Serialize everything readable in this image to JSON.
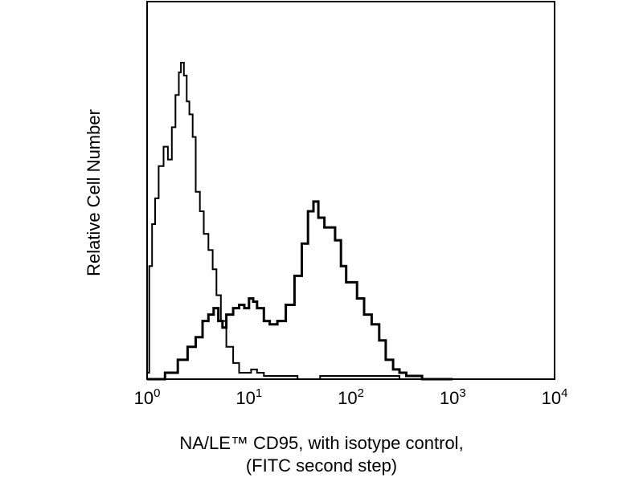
{
  "chart_data": {
    "type": "line",
    "title": "",
    "xlabel_line1": "NA/LE™ CD95, with isotype control,",
    "xlabel_line2": "(FITC second step)",
    "ylabel": "Relative Cell Number",
    "x_scale": "log",
    "xlim": [
      1,
      10000
    ],
    "ylim": [
      0,
      100
    ],
    "x_ticks": [
      {
        "base": "10",
        "exp": "0",
        "value": 1
      },
      {
        "base": "10",
        "exp": "1",
        "value": 10
      },
      {
        "base": "10",
        "exp": "2",
        "value": 100
      },
      {
        "base": "10",
        "exp": "3",
        "value": 1000
      },
      {
        "base": "10",
        "exp": "4",
        "value": 10000
      }
    ],
    "grid": false,
    "legend": "none",
    "series": [
      {
        "role": "isotype-control",
        "color": "#000000",
        "x": [
          1.0,
          1.05,
          1.12,
          1.2,
          1.3,
          1.45,
          1.6,
          1.75,
          1.9,
          2.05,
          2.15,
          2.3,
          2.45,
          2.6,
          2.8,
          3.0,
          3.3,
          3.6,
          4.0,
          4.4,
          4.8,
          5.3,
          6.0,
          7.0,
          8.0,
          9.0,
          10.5,
          12.0,
          14.0,
          17.0,
          22.0,
          30.0,
          50.0,
          100.0,
          300.0
        ],
        "y": [
          2,
          35,
          48,
          56,
          66,
          72,
          68,
          78,
          88,
          95,
          98,
          94,
          86,
          82,
          75,
          58,
          52,
          45,
          40,
          34,
          26,
          18,
          10,
          5,
          2,
          2,
          3,
          2,
          1,
          1,
          1,
          0,
          1,
          1,
          0
        ]
      },
      {
        "role": "CD95",
        "color": "#000000",
        "x": [
          1.0,
          1.5,
          2.0,
          2.5,
          3.0,
          3.5,
          4.0,
          4.5,
          5.0,
          5.5,
          6.0,
          7.0,
          8.0,
          9.0,
          10.0,
          11.0,
          12.0,
          14.0,
          16.0,
          19.0,
          23.0,
          28.0,
          33.0,
          38.0,
          43.0,
          48.0,
          55.0,
          62.0,
          70.0,
          80.0,
          90.0,
          100.0,
          115.0,
          135.0,
          160.0,
          190.0,
          220.0,
          260.0,
          300.0,
          350.0,
          400.0,
          500.0,
          700.0,
          1000.0
        ],
        "y": [
          0,
          2,
          6,
          10,
          13,
          18,
          20,
          22,
          18,
          16,
          20,
          22,
          23,
          22,
          25,
          24,
          22,
          18,
          17,
          18,
          23,
          32,
          42,
          52,
          55,
          50,
          47,
          47,
          43,
          35,
          30,
          30,
          25,
          20,
          17,
          12,
          6,
          3,
          2,
          1,
          1,
          0,
          0,
          0
        ]
      }
    ]
  }
}
